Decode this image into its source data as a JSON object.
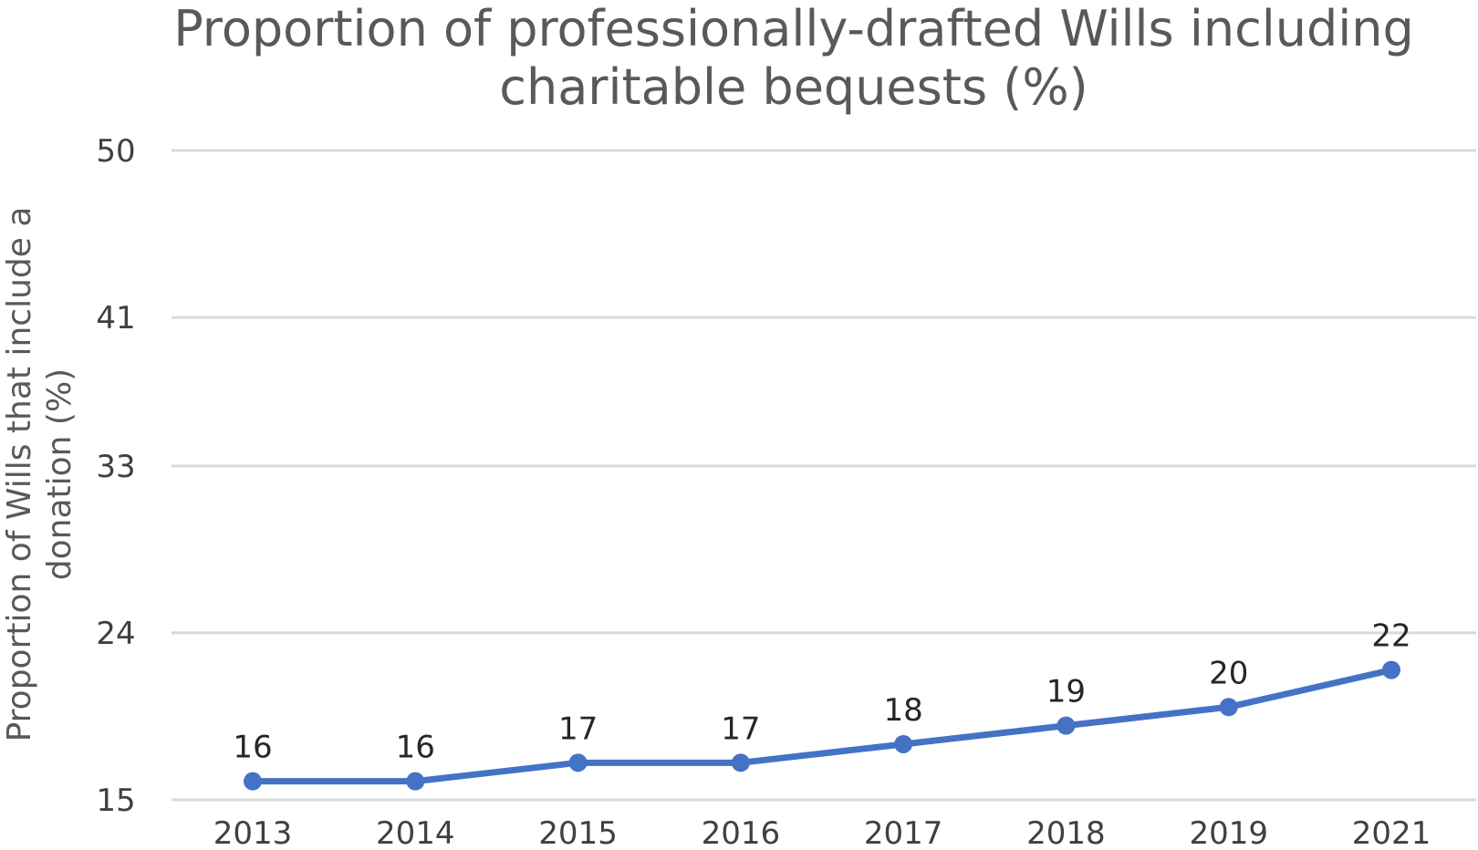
{
  "chart_data": {
    "type": "line",
    "title_lines": [
      "Proportion of professionally-drafted Wills including",
      "charitable bequests (%)"
    ],
    "ylabel_lines": [
      "Proportion of Wills that include a",
      "donation (%)"
    ],
    "xlabel": "",
    "categories": [
      "2013",
      "2014",
      "2015",
      "2016",
      "2017",
      "2018",
      "2019",
      "2021"
    ],
    "series": [
      {
        "values": [
          16,
          16,
          17,
          17,
          18,
          19,
          20,
          22
        ]
      }
    ],
    "data_labels": [
      "16",
      "16",
      "17",
      "17",
      "18",
      "19",
      "20",
      "22"
    ],
    "y_ticks": [
      15,
      24,
      33,
      41,
      50
    ],
    "ylim": [
      15,
      50
    ],
    "grid": true,
    "legend": "none",
    "colors": {
      "line": "#4472c4",
      "grid": "#d9d9d9"
    }
  }
}
